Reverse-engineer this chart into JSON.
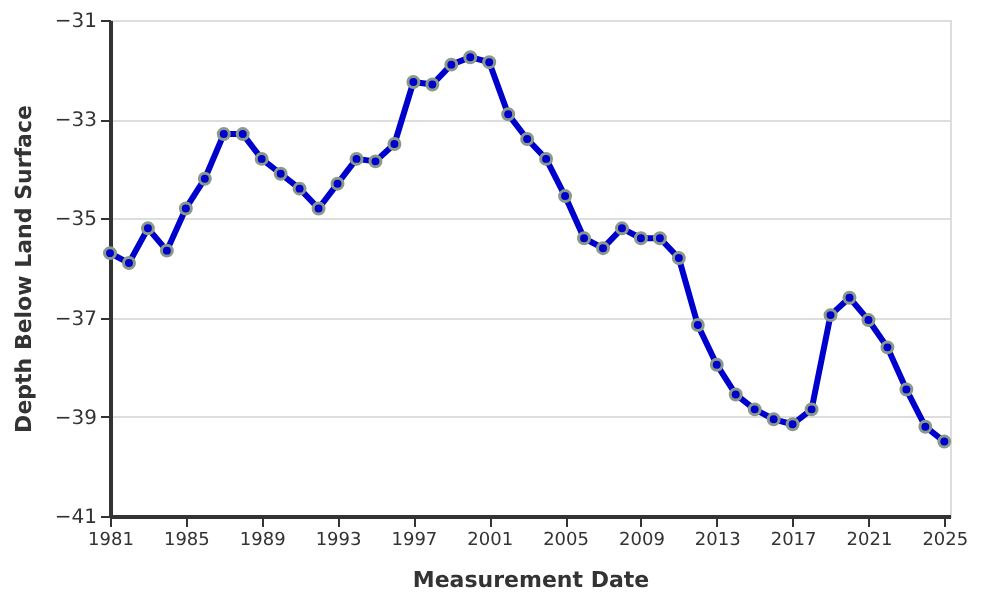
{
  "chart_data": {
    "type": "line",
    "xlabel": "Measurement Date",
    "ylabel": "Depth Below Land Surface",
    "x": [
      1981,
      1982,
      1983,
      1984,
      1985,
      1986,
      1987,
      1988,
      1989,
      1990,
      1991,
      1992,
      1993,
      1994,
      1995,
      1996,
      1997,
      1998,
      1999,
      2000,
      2001,
      2002,
      2003,
      2004,
      2005,
      2006,
      2007,
      2008,
      2009,
      2010,
      2011,
      2012,
      2013,
      2014,
      2015,
      2016,
      2017,
      2018,
      2019,
      2020,
      2021,
      2022,
      2023,
      2024,
      2025
    ],
    "series": [
      {
        "color": "#0000cc",
        "values": [
          -35.7,
          -35.9,
          -35.2,
          -35.65,
          -34.8,
          -34.2,
          -33.3,
          -33.3,
          -33.8,
          -34.1,
          -34.4,
          -34.8,
          -34.3,
          -33.8,
          -33.85,
          -33.5,
          -32.25,
          -32.3,
          -31.9,
          -31.75,
          -31.85,
          -32.9,
          -33.4,
          -33.8,
          -34.55,
          -35.4,
          -35.6,
          -35.2,
          -35.4,
          -35.4,
          -35.8,
          -37.15,
          -37.95,
          -38.55,
          -38.85,
          -39.05,
          -39.15,
          -38.85,
          -36.95,
          -36.6,
          -37.05,
          -37.6,
          -38.45,
          -39.2,
          -39.5
        ]
      }
    ],
    "xlim": [
      1981,
      2025.3
    ],
    "xticks": [
      1981,
      1985,
      1989,
      1993,
      1997,
      2001,
      2005,
      2009,
      2013,
      2017,
      2021,
      2025
    ],
    "ylim": [
      -41,
      -31
    ],
    "yticks": [
      -41,
      -39,
      -37,
      -35,
      -33,
      -31
    ],
    "grid": "y",
    "marker": "circle",
    "line_style": "solid"
  }
}
